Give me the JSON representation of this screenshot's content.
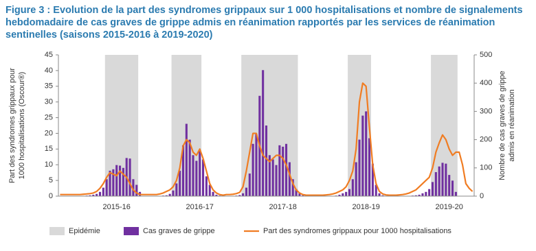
{
  "chart_data": {
    "type": "combo",
    "title": "Figure 3 : Evolution de la part des syndromes grippaux sur 1 000 hospitalisations et nombre de signalements hebdomadaire de cas graves de grippe admis en réanimation rapportés par les services de réanimation sentinelles (saisons 2015-2016 à 2019-2020)",
    "ylabel": [
      "Part des syndromes grippaux pour",
      "1000 hospitalisations (Oscour®)"
    ],
    "y2label": [
      "Nombre de cas graves de grippe",
      "admis en réanimation"
    ],
    "ylim": [
      0,
      45
    ],
    "yticks": [
      0,
      5,
      10,
      15,
      20,
      25,
      30,
      35,
      40,
      45
    ],
    "y2lim": [
      0,
      500
    ],
    "y2ticks": [
      0,
      100,
      200,
      300,
      400,
      500
    ],
    "categories": [
      null,
      null,
      null,
      null,
      null,
      null,
      null,
      null,
      null,
      null,
      null,
      null,
      null,
      null,
      null,
      null,
      null,
      "2015-16",
      null,
      null,
      null,
      null,
      null,
      null,
      null,
      null,
      null,
      null,
      null,
      null,
      null,
      null,
      null,
      null,
      null,
      null,
      null,
      null,
      null,
      null,
      null,
      null,
      "2016-17",
      null,
      null,
      null,
      null,
      null,
      null,
      null,
      null,
      null,
      null,
      null,
      null,
      null,
      null,
      null,
      null,
      null,
      null,
      null,
      null,
      null,
      null,
      null,
      null,
      "2017-18",
      null,
      null,
      null,
      null,
      null,
      null,
      null,
      null,
      null,
      null,
      null,
      null,
      null,
      null,
      null,
      null,
      null,
      null,
      null,
      null,
      null,
      null,
      null,
      null,
      "2018-19",
      null,
      null,
      null,
      null,
      null,
      null,
      null,
      null,
      null,
      null,
      null,
      null,
      null,
      null,
      null,
      null,
      null,
      null,
      null,
      null,
      null,
      null,
      null,
      null,
      "2019-20",
      null,
      null,
      null,
      null,
      null,
      null,
      null
    ],
    "series": [
      {
        "name": "Epidémie",
        "type": "span",
        "color": "#d9d9d9",
        "spans": [
          [
            14,
            23
          ],
          [
            34,
            42
          ],
          [
            55,
            71
          ],
          [
            87,
            93
          ],
          [
            112,
            119
          ]
        ]
      },
      {
        "name": "Cas graves de grippe",
        "type": "bar",
        "axis": "y2",
        "color": "#7030a0",
        "values": [
          0,
          0,
          0,
          0,
          0,
          0,
          0,
          0,
          2,
          3,
          5,
          8,
          15,
          30,
          60,
          90,
          95,
          110,
          108,
          100,
          135,
          133,
          60,
          40,
          15,
          0,
          0,
          0,
          0,
          0,
          1,
          2,
          3,
          8,
          20,
          45,
          90,
          180,
          256,
          200,
          145,
          125,
          160,
          130,
          70,
          40,
          15,
          5,
          2,
          0,
          0,
          0,
          1,
          2,
          4,
          10,
          30,
          80,
          185,
          220,
          355,
          446,
          250,
          145,
          130,
          110,
          180,
          175,
          185,
          120,
          60,
          25,
          10,
          3,
          0,
          0,
          0,
          0,
          0,
          0,
          0,
          0,
          1,
          2,
          5,
          10,
          15,
          25,
          60,
          120,
          200,
          285,
          300,
          205,
          115,
          40,
          10,
          3,
          0,
          0,
          0,
          0,
          0,
          0,
          0,
          1,
          2,
          3,
          5,
          10,
          15,
          25,
          50,
          85,
          105,
          118,
          115,
          75,
          55,
          15,
          0,
          0,
          0,
          0,
          0
        ]
      },
      {
        "name": "Part des syndromes grippaux pour 1000 hospitalisations",
        "type": "line",
        "color": "#f07c22",
        "values": [
          0.5,
          0.5,
          0.5,
          0.5,
          0.5,
          0.5,
          0.5,
          0.6,
          0.7,
          0.8,
          1,
          1.5,
          2.5,
          4,
          6,
          7.5,
          7,
          6.5,
          8,
          7,
          6,
          4,
          2,
          1,
          0.5,
          0.5,
          0.5,
          0.5,
          0.5,
          0.5,
          0.7,
          1,
          1.5,
          2,
          3,
          5,
          9,
          16,
          18,
          17,
          14,
          13,
          15,
          12,
          8,
          4,
          2,
          1,
          0.5,
          0.3,
          0.5,
          0.5,
          0.6,
          0.8,
          1.2,
          3,
          8,
          14,
          20,
          20,
          16,
          13,
          12,
          11,
          12,
          13,
          13,
          12,
          10,
          7,
          4,
          2,
          1,
          0.5,
          0.3,
          0.3,
          0.3,
          0.3,
          0.3,
          0.3,
          0.4,
          0.5,
          0.7,
          1,
          1.5,
          2,
          3,
          5,
          8,
          15,
          30,
          36,
          35,
          22,
          10,
          4,
          1.5,
          0.7,
          0.4,
          0.3,
          0.3,
          0.3,
          0.4,
          0.5,
          0.7,
          1,
          1.5,
          2,
          3,
          4,
          5,
          6,
          9,
          14,
          17,
          19.5,
          18,
          15,
          13,
          14,
          14,
          10,
          4,
          2.5,
          1.5
        ]
      }
    ]
  }
}
